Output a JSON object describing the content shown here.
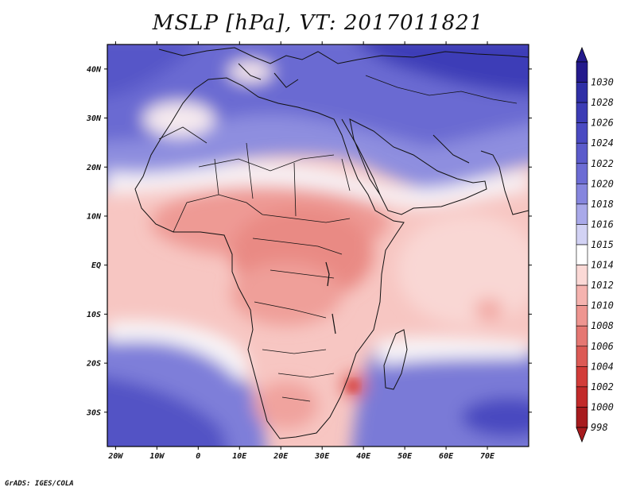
{
  "title": "MSLP [hPa], VT: 2017011821",
  "footer": "GrADS: IGES/COLA",
  "map": {
    "region": "Africa, Arabia and western Indian Ocean",
    "lon_range": [
      -22,
      80
    ],
    "lat_range": [
      -37,
      45
    ],
    "x_ticks": [
      {
        "lon": -20,
        "label": "20W"
      },
      {
        "lon": -10,
        "label": "10W"
      },
      {
        "lon": 0,
        "label": "0"
      },
      {
        "lon": 10,
        "label": "10E"
      },
      {
        "lon": 20,
        "label": "20E"
      },
      {
        "lon": 30,
        "label": "30E"
      },
      {
        "lon": 40,
        "label": "40E"
      },
      {
        "lon": 50,
        "label": "50E"
      },
      {
        "lon": 60,
        "label": "60E"
      },
      {
        "lon": 70,
        "label": "70E"
      }
    ],
    "y_ticks": [
      {
        "lat": 40,
        "label": "40N"
      },
      {
        "lat": 30,
        "label": "30N"
      },
      {
        "lat": 20,
        "label": "20N"
      },
      {
        "lat": 10,
        "label": "10N"
      },
      {
        "lat": 0,
        "label": "EQ"
      },
      {
        "lat": -10,
        "label": "10S"
      },
      {
        "lat": -20,
        "label": "20S"
      },
      {
        "lat": -30,
        "label": "30S"
      }
    ]
  },
  "colorbar": {
    "levels": [
      "1030",
      "1028",
      "1026",
      "1024",
      "1022",
      "1020",
      "1018",
      "1016",
      "1015",
      "1014",
      "1012",
      "1010",
      "1008",
      "1006",
      "1004",
      "1002",
      "1000",
      "998"
    ],
    "colors": [
      "#241a8c",
      "#2f2fa6",
      "#3c3cb5",
      "#4a4ac2",
      "#5b5bcb",
      "#6c6cd4",
      "#8686de",
      "#a9a9e9",
      "#d2d2f4",
      "#ffffff",
      "#fbd9d6",
      "#f5b3af",
      "#ee9590",
      "#e57772",
      "#dc5a55",
      "#d23c39",
      "#c22a2a",
      "#a71b1e"
    ]
  }
}
